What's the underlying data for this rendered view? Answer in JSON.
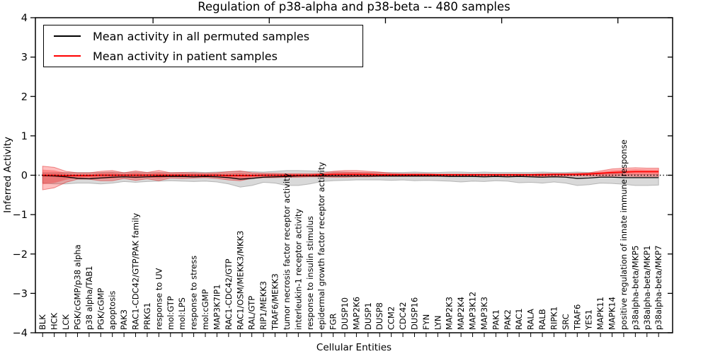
{
  "legend": {
    "entries": [
      {
        "label": "Mean activity in all permuted samples",
        "color": "#000000"
      },
      {
        "label": "Mean activity in patient samples",
        "color": "#ff0000"
      }
    ]
  },
  "chart_data": {
    "type": "line",
    "title": "Regulation of p38-alpha and p38-beta -- 480 samples",
    "xlabel": "Cellular Entities",
    "ylabel": "Inferred Activity",
    "ylim": [
      -4,
      4
    ],
    "yticks": [
      4,
      3,
      2,
      1,
      0,
      -1,
      -2,
      -3,
      -4
    ],
    "top_axis_ticks": [
      10,
      20,
      30,
      40,
      50
    ],
    "grid": false,
    "legend_position": "upper left",
    "zero_reference_line": 0,
    "categories": [
      "BLK",
      "HCK",
      "LCK",
      "PGK/cGMP/p38 alpha",
      "p38 alpha/TAB1",
      "PGK/cGMP",
      "apoptosis",
      "PAK3",
      "RAC1-CDC42/GTP/PAK family",
      "PRKG1",
      "response to UV",
      "mol:GTP",
      "mol:LPS",
      "response to stress",
      "mol:cGMP",
      "MAP3K7IP1",
      "RAC1-CDC42/GTP",
      "RAC1/OSM/MEKK3/MKK3",
      "RAL/GTP",
      "RIP1/MEKK3",
      "TRAF6/MEKK3",
      "tumor necrosis factor receptor activity",
      "interleukin-1 receptor activity",
      "response to insulin stimulus",
      "epidermal growth factor receptor activity",
      "FGR",
      "DUSP10",
      "MAP2K6",
      "DUSP1",
      "DUSP8",
      "CCM2",
      "CDC42",
      "DUSP16",
      "FYN",
      "LYN",
      "MAP2K3",
      "MAP2K4",
      "MAP3K12",
      "MAP3K3",
      "PAK1",
      "PAK2",
      "RAC1",
      "RALA",
      "RALB",
      "RIPK1",
      "SRC",
      "TRAF6",
      "YES1",
      "MAPK11",
      "MAPK14",
      "positive regulation of innate immune response",
      "p38alpha-beta/MKP5",
      "p38alpha-beta/MKP1",
      "p38alpha-beta/MKP7"
    ],
    "series": [
      {
        "name": "Mean activity in all permuted samples",
        "type": "line",
        "color": "#000000",
        "values": [
          -0.01,
          -0.02,
          -0.04,
          -0.08,
          -0.09,
          -0.07,
          -0.05,
          -0.04,
          -0.05,
          -0.04,
          -0.03,
          -0.03,
          -0.03,
          -0.04,
          -0.03,
          -0.04,
          -0.06,
          -0.1,
          -0.08,
          -0.05,
          -0.04,
          -0.03,
          -0.02,
          -0.02,
          -0.02,
          -0.02,
          -0.02,
          -0.02,
          -0.02,
          -0.02,
          -0.02,
          -0.02,
          -0.02,
          -0.02,
          -0.02,
          -0.03,
          -0.03,
          -0.03,
          -0.04,
          -0.03,
          -0.04,
          -0.03,
          -0.04,
          -0.05,
          -0.04,
          -0.05,
          -0.08,
          -0.07,
          -0.05,
          -0.05,
          -0.06,
          -0.06,
          -0.06,
          -0.06
        ]
      },
      {
        "name": "Mean activity in patient samples",
        "type": "line",
        "color": "#ff0000",
        "values": [
          0,
          0,
          -0.01,
          -0.01,
          -0.01,
          0,
          0,
          0,
          0,
          0,
          0,
          0,
          0,
          0,
          0,
          0,
          -0.01,
          -0.01,
          -0.01,
          0,
          0,
          0,
          0,
          0,
          0.01,
          0.02,
          0.02,
          0.02,
          0.02,
          0.01,
          0.01,
          0.01,
          0.01,
          0.01,
          0.01,
          0.01,
          0.01,
          0.01,
          0.01,
          0.01,
          0.01,
          0.01,
          0.01,
          0.01,
          0.02,
          0.02,
          0.02,
          0.03,
          0.05,
          0.07,
          0.08,
          0.09,
          0.09,
          0.09
        ]
      },
      {
        "name": "Permuted samples spread",
        "type": "band",
        "color": "#999999",
        "top": [
          0.06,
          0.06,
          0.07,
          0.07,
          0.07,
          0.07,
          0.08,
          0.07,
          0.08,
          0.07,
          0.07,
          0.07,
          0.07,
          0.08,
          0.07,
          0.08,
          0.09,
          0.1,
          0.09,
          0.08,
          0.1,
          0.12,
          0.12,
          0.11,
          0.1,
          0.08,
          0.08,
          0.07,
          0.07,
          0.07,
          0.07,
          0.07,
          0.08,
          0.07,
          0.07,
          0.08,
          0.08,
          0.07,
          0.08,
          0.07,
          0.07,
          0.07,
          0.07,
          0.08,
          0.07,
          0.07,
          0.08,
          0.07,
          0.06,
          0.05,
          0.03,
          0.02,
          0.02,
          0.02
        ],
        "bottom": [
          -0.2,
          -0.22,
          -0.22,
          -0.2,
          -0.2,
          -0.22,
          -0.2,
          -0.16,
          -0.18,
          -0.16,
          -0.15,
          -0.14,
          -0.15,
          -0.16,
          -0.15,
          -0.17,
          -0.22,
          -0.3,
          -0.26,
          -0.18,
          -0.2,
          -0.26,
          -0.26,
          -0.22,
          -0.16,
          -0.14,
          -0.13,
          -0.12,
          -0.12,
          -0.12,
          -0.13,
          -0.12,
          -0.14,
          -0.13,
          -0.14,
          -0.15,
          -0.17,
          -0.15,
          -0.16,
          -0.14,
          -0.15,
          -0.19,
          -0.18,
          -0.2,
          -0.17,
          -0.2,
          -0.26,
          -0.24,
          -0.2,
          -0.21,
          -0.23,
          -0.26,
          -0.26,
          -0.25
        ]
      },
      {
        "name": "Patient samples spread",
        "type": "band",
        "color": "#ff0000",
        "top": [
          0.23,
          0.2,
          0.1,
          0.06,
          0.06,
          0.1,
          0.12,
          0.06,
          0.11,
          0.07,
          0.12,
          0.06,
          0.07,
          0.06,
          0.05,
          0.06,
          0.09,
          0.11,
          0.06,
          0.05,
          0.05,
          0.04,
          0.04,
          0.04,
          0.05,
          0.1,
          0.12,
          0.12,
          0.1,
          0.08,
          0.05,
          0.04,
          0.04,
          0.04,
          0.03,
          0.03,
          0.03,
          0.03,
          0.03,
          0.03,
          0.03,
          0.03,
          0.03,
          0.04,
          0.04,
          0.04,
          0.05,
          0.06,
          0.11,
          0.16,
          0.18,
          0.19,
          0.18,
          0.18
        ],
        "bottom": [
          -0.37,
          -0.32,
          -0.18,
          -0.1,
          -0.1,
          -0.14,
          -0.14,
          -0.08,
          -0.13,
          -0.09,
          -0.14,
          -0.07,
          -0.08,
          -0.07,
          -0.06,
          -0.08,
          -0.12,
          -0.14,
          -0.08,
          -0.06,
          -0.06,
          -0.05,
          -0.05,
          -0.04,
          -0.04,
          -0.05,
          -0.05,
          -0.04,
          -0.04,
          -0.03,
          -0.03,
          -0.03,
          -0.03,
          -0.03,
          -0.03,
          -0.03,
          -0.03,
          -0.03,
          -0.03,
          -0.03,
          -0.02,
          -0.02,
          -0.03,
          -0.03,
          -0.03,
          -0.02,
          -0.02,
          -0.02,
          -0.02,
          -0.02,
          -0.02,
          -0.03,
          -0.03,
          -0.03
        ]
      }
    ]
  }
}
